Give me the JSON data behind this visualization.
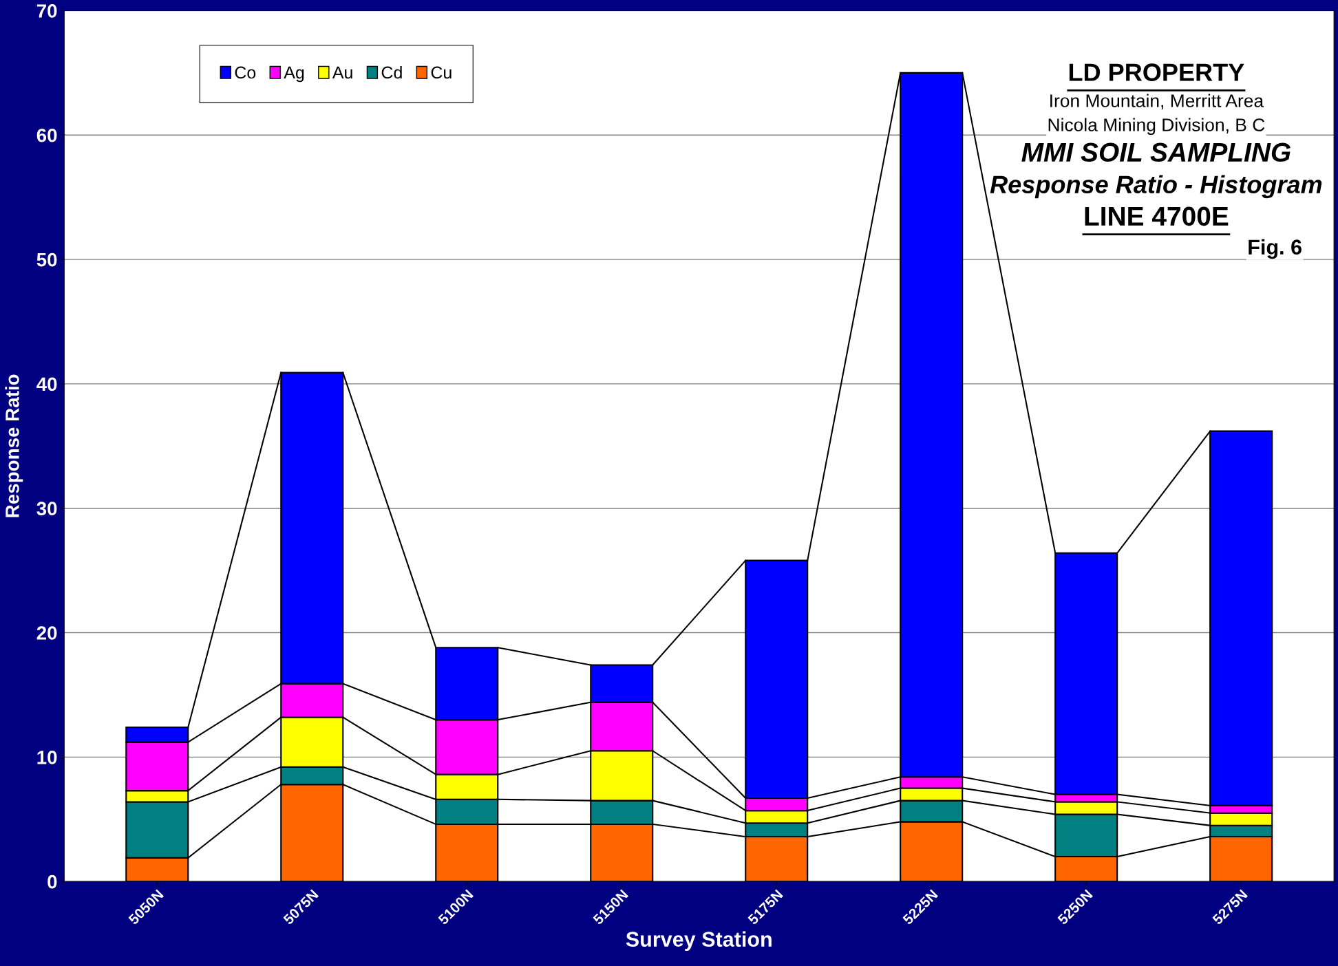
{
  "chart_data": {
    "type": "bar",
    "stacked": true,
    "xlabel": "Survey Station",
    "ylabel": "Response Ratio",
    "categories": [
      "5050N",
      "5075N",
      "5100N",
      "5150N",
      "5175N",
      "5225N",
      "5250N",
      "5275N"
    ],
    "series": [
      {
        "name": "Cu",
        "color": "#ff6600",
        "values": [
          1.9,
          7.8,
          4.6,
          4.6,
          3.6,
          4.8,
          2.0,
          3.6
        ]
      },
      {
        "name": "Cd",
        "color": "#008080",
        "values": [
          4.5,
          1.4,
          2.0,
          1.9,
          1.1,
          1.7,
          3.4,
          0.9
        ]
      },
      {
        "name": "Au",
        "color": "#ffff00",
        "values": [
          0.9,
          4.0,
          2.0,
          4.0,
          1.0,
          1.0,
          1.0,
          1.0
        ]
      },
      {
        "name": "Ag",
        "color": "#ff00ff",
        "values": [
          3.9,
          2.7,
          4.4,
          3.9,
          1.0,
          0.9,
          0.6,
          0.6
        ]
      },
      {
        "name": "Co",
        "color": "#0000ff",
        "values": [
          1.2,
          25.0,
          5.8,
          3.0,
          19.1,
          56.6,
          19.4,
          30.1
        ]
      }
    ],
    "ylim": [
      0,
      70
    ],
    "yticks": [
      0,
      10,
      20,
      30,
      40,
      50,
      60,
      70
    ],
    "grid": "y",
    "legend": "top left",
    "annotations": [
      "LD PROPERTY",
      "Iron Mountain, Merritt Area",
      "Nicola Mining Division, B C",
      "MMI SOIL SAMPLING",
      "Response Ratio - Histogram",
      "LINE 4700E",
      "Fig. 6"
    ]
  }
}
